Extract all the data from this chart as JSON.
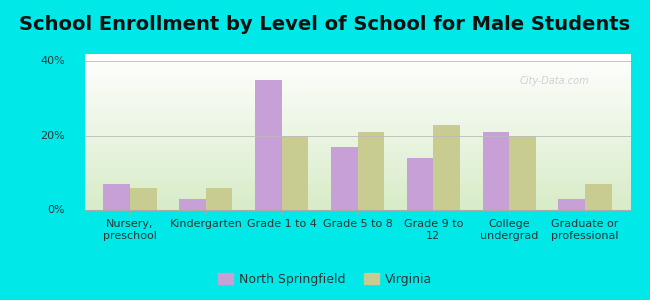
{
  "title": "School Enrollment by Level of School for Male Students",
  "categories": [
    "Nursery,\npreschool",
    "Kindergarten",
    "Grade 1 to 4",
    "Grade 5 to 8",
    "Grade 9 to\n12",
    "College\nundergrad",
    "Graduate or\nprofessional"
  ],
  "north_springfield": [
    7,
    3,
    35,
    17,
    14,
    21,
    3
  ],
  "virginia": [
    6,
    6,
    20,
    21,
    23,
    20,
    7
  ],
  "color_ns": "#c8a0d8",
  "color_va": "#c8cc90",
  "background_outer": "#00e8e8",
  "background_inner_top": "#ffffff",
  "background_inner_bottom": "#d8ecc8",
  "ylabel_ticks": [
    "0%",
    "20%",
    "40%"
  ],
  "yticks": [
    0,
    20,
    40
  ],
  "ylim": [
    0,
    42
  ],
  "legend_ns": "North Springfield",
  "legend_va": "Virginia",
  "title_fontsize": 14,
  "tick_fontsize": 8,
  "legend_fontsize": 9,
  "bar_width": 0.35
}
